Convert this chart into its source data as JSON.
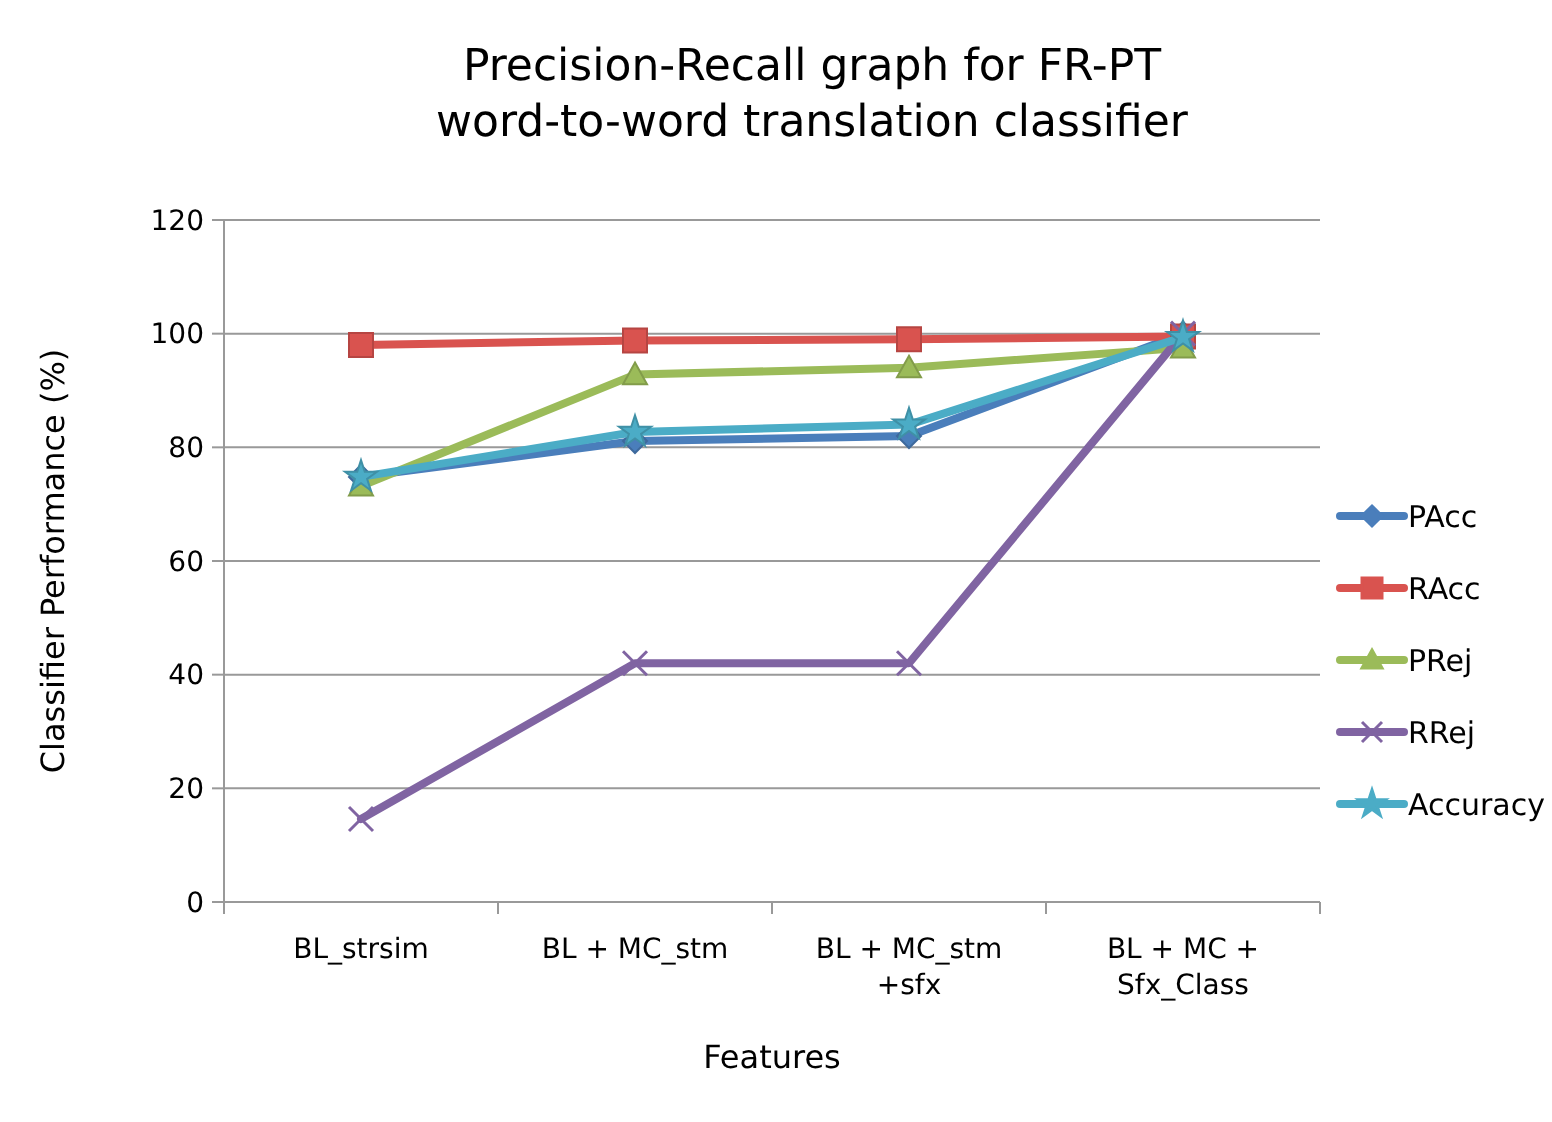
{
  "chart_data": {
    "type": "line",
    "title": "Precision-Recall graph for FR-PT word-to-word translation classifier",
    "xlabel": "Features",
    "ylabel": "Classifier Performance (%)",
    "categories": [
      "BL_strsim",
      "BL + MC_stm",
      "BL + MC_stm +sfx",
      "BL + MC + Sfx_Class"
    ],
    "series": [
      {
        "name": "PAcc",
        "color": "#4a7ebb",
        "marker": "diamond",
        "values": [
          74.8,
          81.1,
          82,
          100
        ]
      },
      {
        "name": "RAcc",
        "color": "#d9534f",
        "marker": "square",
        "values": [
          98,
          98.8,
          99,
          99.5
        ]
      },
      {
        "name": "PRej",
        "color": "#9bbb59",
        "marker": "triangle",
        "values": [
          73.2,
          92.8,
          94,
          97.5
        ]
      },
      {
        "name": "RRej",
        "color": "#8064a2",
        "marker": "cross",
        "values": [
          14.6,
          42,
          42,
          100
        ]
      },
      {
        "name": "Accuracy",
        "color": "#4bacc6",
        "marker": "star",
        "values": [
          74.8,
          82.7,
          84,
          99.4
        ]
      }
    ],
    "ylim": [
      0,
      120
    ],
    "yticks": [
      0,
      20,
      40,
      60,
      80,
      100,
      120
    ],
    "grid": "y",
    "legend": "right",
    "line_style": "solid"
  }
}
